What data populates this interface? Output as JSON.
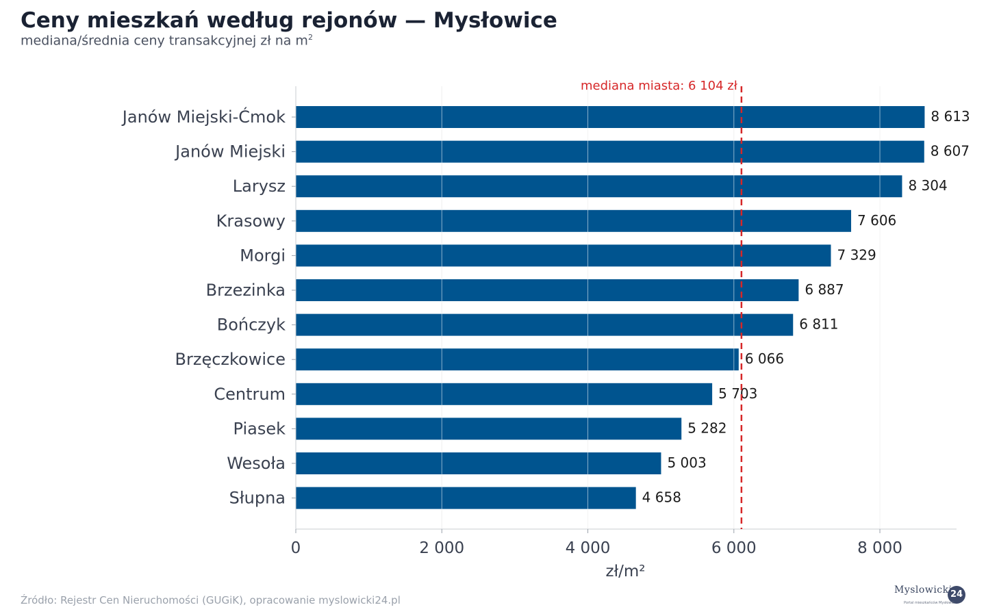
{
  "header": {
    "title": "Ceny mieszkań według rejonów — Mysłowice",
    "subtitle": "mediana/średnia ceny transakcyjnej zł na m",
    "subtitle_sup": "2"
  },
  "footer": {
    "source": "Źródło: Rejestr Cen Nieruchomości (GUGiK), opracowanie myslowicki24.pl",
    "logo_text": "Myslowicki",
    "logo_badge": "24",
    "logo_tagline": "Portal mieszkańców Mysłowic"
  },
  "colors": {
    "bar": "#00548f",
    "median_line": "#d62728",
    "grid": "#e6e6e6",
    "axis_text": "#3a4150",
    "value_text": "#1a1a1a"
  },
  "chart_data": {
    "type": "bar",
    "orientation": "horizontal",
    "categories": [
      "Janów Miejski-Ćmok",
      "Janów Miejski",
      "Larysz",
      "Krasowy",
      "Morgi",
      "Brzezinka",
      "Bończyk",
      "Brzęczkowice",
      "Centrum",
      "Piasek",
      "Wesoła",
      "Słupna"
    ],
    "values": [
      8613,
      8607,
      8304,
      7606,
      7329,
      6887,
      6811,
      6066,
      5703,
      5282,
      5003,
      4658
    ],
    "value_labels": [
      "8 613",
      "8 607",
      "8 304",
      "7 606",
      "7 329",
      "6 887",
      "6 811",
      "6 066",
      "5 703",
      "5 282",
      "5 003",
      "4 658"
    ],
    "xlabel": "zł/m²",
    "ylabel": "",
    "xlim": [
      0,
      9050
    ],
    "xticks": [
      0,
      2000,
      4000,
      6000,
      8000
    ],
    "xtick_labels": [
      "0",
      "2 000",
      "4 000",
      "6 000",
      "8 000"
    ],
    "grid": "vertical",
    "reference_line": {
      "value": 6104,
      "label": "mediana miasta: 6 104 zł",
      "style": "dashed"
    }
  }
}
